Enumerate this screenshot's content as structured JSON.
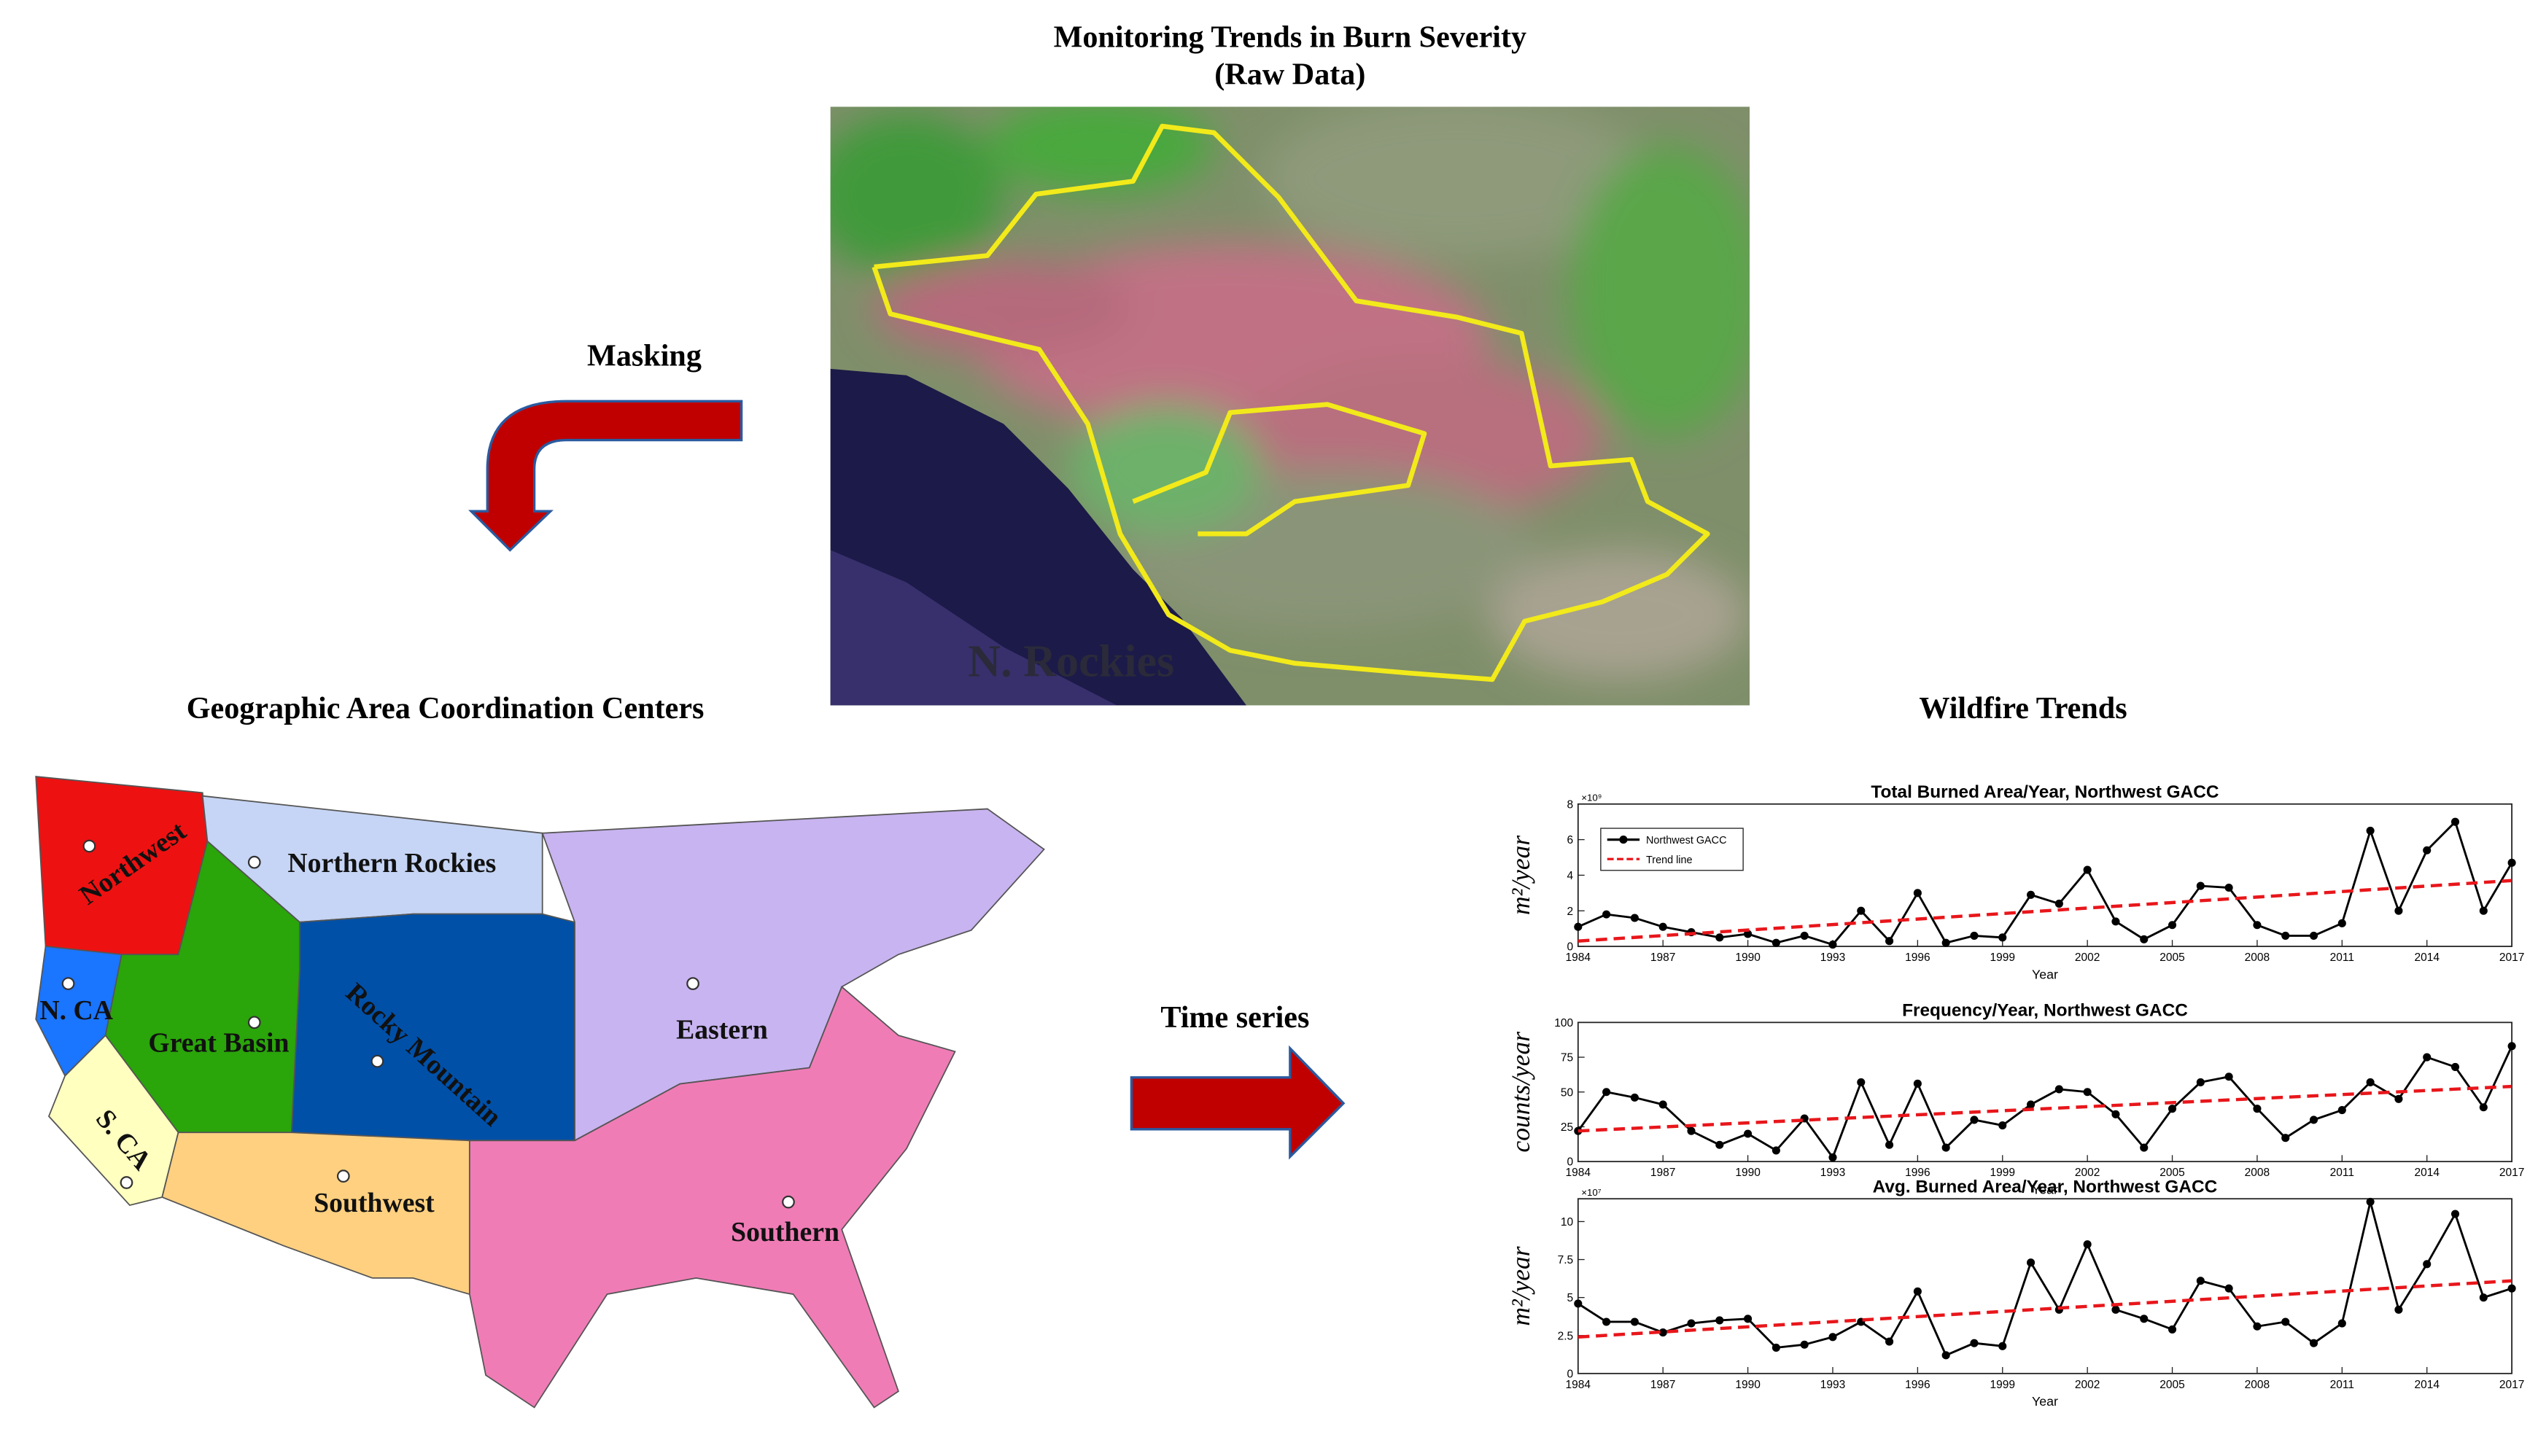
{
  "image": {
    "title": "Monitoring Trends in Burn Severity",
    "subtitle": "(Raw Data)",
    "label": "N. Rockies"
  },
  "arrows": {
    "masking": "Masking",
    "time_series": "Time series"
  },
  "map": {
    "title": "Geographic Area Coordination Centers",
    "regions": [
      "Northwest",
      "Northern Rockies",
      "N. CA",
      "Great Basin",
      "Rocky Mountain",
      "Eastern",
      "S. CA",
      "Southwest",
      "Southern"
    ]
  },
  "trends_title": "Wildfire Trends",
  "chart_data": [
    {
      "type": "line",
      "title": "Total Burned Area/Year, Northwest GACC",
      "x_label": "Year",
      "y_label": "m²/year",
      "y_multiplier": "×10⁹",
      "x": [
        1984,
        1985,
        1986,
        1987,
        1988,
        1989,
        1990,
        1991,
        1992,
        1993,
        1994,
        1995,
        1996,
        1997,
        1998,
        1999,
        2000,
        2001,
        2002,
        2003,
        2004,
        2005,
        2006,
        2007,
        2008,
        2009,
        2010,
        2011,
        2012,
        2013,
        2014,
        2015,
        2016,
        2017
      ],
      "series": [
        {
          "name": "Northwest GACC",
          "color": "#000000",
          "marker": "circle",
          "linestyle": "solid",
          "values": [
            1.1,
            1.8,
            1.6,
            1.1,
            0.8,
            0.5,
            0.7,
            0.2,
            0.6,
            0.1,
            2.0,
            0.3,
            3.0,
            0.2,
            0.6,
            0.5,
            2.9,
            2.4,
            4.3,
            1.4,
            0.4,
            1.2,
            3.4,
            3.3,
            1.2,
            0.6,
            0.6,
            1.3,
            6.5,
            2.0,
            5.4,
            7.0,
            2.0,
            4.7
          ]
        },
        {
          "name": "Trend line",
          "color": "#e8161b",
          "marker": "none",
          "linestyle": "dashed",
          "x": [
            1984,
            2017
          ],
          "values": [
            0.3,
            3.7
          ]
        }
      ],
      "xlim": [
        1984,
        2017
      ],
      "xticks": [
        1984,
        1987,
        1990,
        1993,
        1996,
        1999,
        2002,
        2005,
        2008,
        2011,
        2014,
        2017
      ],
      "ylim": [
        0,
        8
      ],
      "yticks": [
        0,
        2,
        4,
        6,
        8
      ],
      "legend": true,
      "legend_position": "upper left"
    },
    {
      "type": "line",
      "title": "Frequency/Year, Northwest GACC",
      "x_label": "Year",
      "y_label": "counts/year",
      "x": [
        1984,
        1985,
        1986,
        1987,
        1988,
        1989,
        1990,
        1991,
        1992,
        1993,
        1994,
        1995,
        1996,
        1997,
        1998,
        1999,
        2000,
        2001,
        2002,
        2003,
        2004,
        2005,
        2006,
        2007,
        2008,
        2009,
        2010,
        2011,
        2012,
        2013,
        2014,
        2015,
        2016,
        2017
      ],
      "series": [
        {
          "color": "#000000",
          "marker": "circle",
          "linestyle": "solid",
          "values": [
            22,
            50,
            46,
            41,
            22,
            12,
            20,
            8,
            31,
            3,
            57,
            12,
            56,
            10,
            30,
            26,
            41,
            52,
            50,
            34,
            10,
            38,
            57,
            61,
            38,
            17,
            30,
            37,
            57,
            45,
            75,
            68,
            39,
            83
          ]
        },
        {
          "color": "#e8161b",
          "marker": "none",
          "linestyle": "dashed",
          "x": [
            1984,
            2017
          ],
          "values": [
            22,
            54
          ]
        }
      ],
      "xlim": [
        1984,
        2017
      ],
      "xticks": [
        1984,
        1987,
        1990,
        1993,
        1996,
        1999,
        2002,
        2005,
        2008,
        2011,
        2014,
        2017
      ],
      "ylim": [
        0,
        100
      ],
      "yticks": [
        0,
        25,
        50,
        75,
        100
      ],
      "legend": false
    },
    {
      "type": "line",
      "title": "Avg. Burned Area/Year, Northwest GACC",
      "x_label": "Year",
      "y_label": "m²/year",
      "y_multiplier": "×10⁷",
      "x": [
        1984,
        1985,
        1986,
        1987,
        1988,
        1989,
        1990,
        1991,
        1992,
        1993,
        1994,
        1995,
        1996,
        1997,
        1998,
        1999,
        2000,
        2001,
        2002,
        2003,
        2004,
        2005,
        2006,
        2007,
        2008,
        2009,
        2010,
        2011,
        2012,
        2013,
        2014,
        2015,
        2016,
        2017
      ],
      "series": [
        {
          "color": "#000000",
          "marker": "circle",
          "linestyle": "solid",
          "values": [
            4.6,
            3.4,
            3.4,
            2.7,
            3.3,
            3.5,
            3.6,
            1.7,
            1.9,
            2.4,
            3.4,
            2.1,
            5.4,
            1.2,
            2.0,
            1.8,
            7.3,
            4.2,
            8.5,
            4.2,
            3.6,
            2.9,
            6.1,
            5.6,
            3.1,
            3.4,
            2.0,
            3.3,
            11.3,
            4.2,
            7.2,
            10.5,
            5.0,
            5.6
          ]
        },
        {
          "color": "#e8161b",
          "marker": "none",
          "linestyle": "dashed",
          "x": [
            1984,
            2017
          ],
          "values": [
            2.4,
            6.1
          ]
        }
      ],
      "xlim": [
        1984,
        2017
      ],
      "xticks": [
        1984,
        1987,
        1990,
        1993,
        1996,
        1999,
        2002,
        2005,
        2008,
        2011,
        2014,
        2017
      ],
      "ylim": [
        0,
        11.5
      ],
      "yticks": [
        0,
        2.5,
        5,
        7.5,
        10
      ],
      "legend": false
    }
  ]
}
